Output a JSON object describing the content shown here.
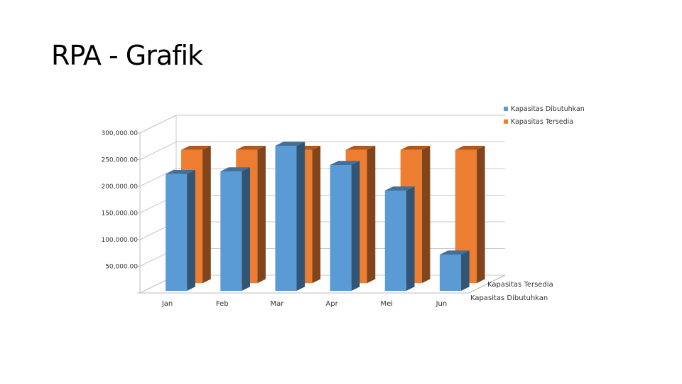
{
  "slide": {
    "title": "RPA - Grafik"
  },
  "chart_data": {
    "type": "bar",
    "title": "",
    "categories": [
      "Jan",
      "Feb",
      "Mar",
      "Apr",
      "Mei",
      "Jun"
    ],
    "series": [
      {
        "name": "Kapasitas Dibutuhkan",
        "color": "#5B9BD5",
        "values": [
          219000,
          224000,
          272000,
          236000,
          188000,
          68000
        ]
      },
      {
        "name": "Kapasitas Tersedia",
        "color": "#ED7D31",
        "values": [
          250000,
          250000,
          250000,
          250000,
          250000,
          250000
        ]
      }
    ],
    "y_ticks": [
      "",
      "50,000.00",
      "100,000.00",
      "150,000.00",
      "200,000.00",
      "250,000.00",
      "300,000.00"
    ],
    "ylim": [
      0,
      300000
    ],
    "depth_labels": [
      "Kapasitas Tersedia",
      "Kapasitas Dibutuhkan"
    ],
    "legend_position": "top-right",
    "grid": true,
    "style": "3d-clustered-column"
  }
}
